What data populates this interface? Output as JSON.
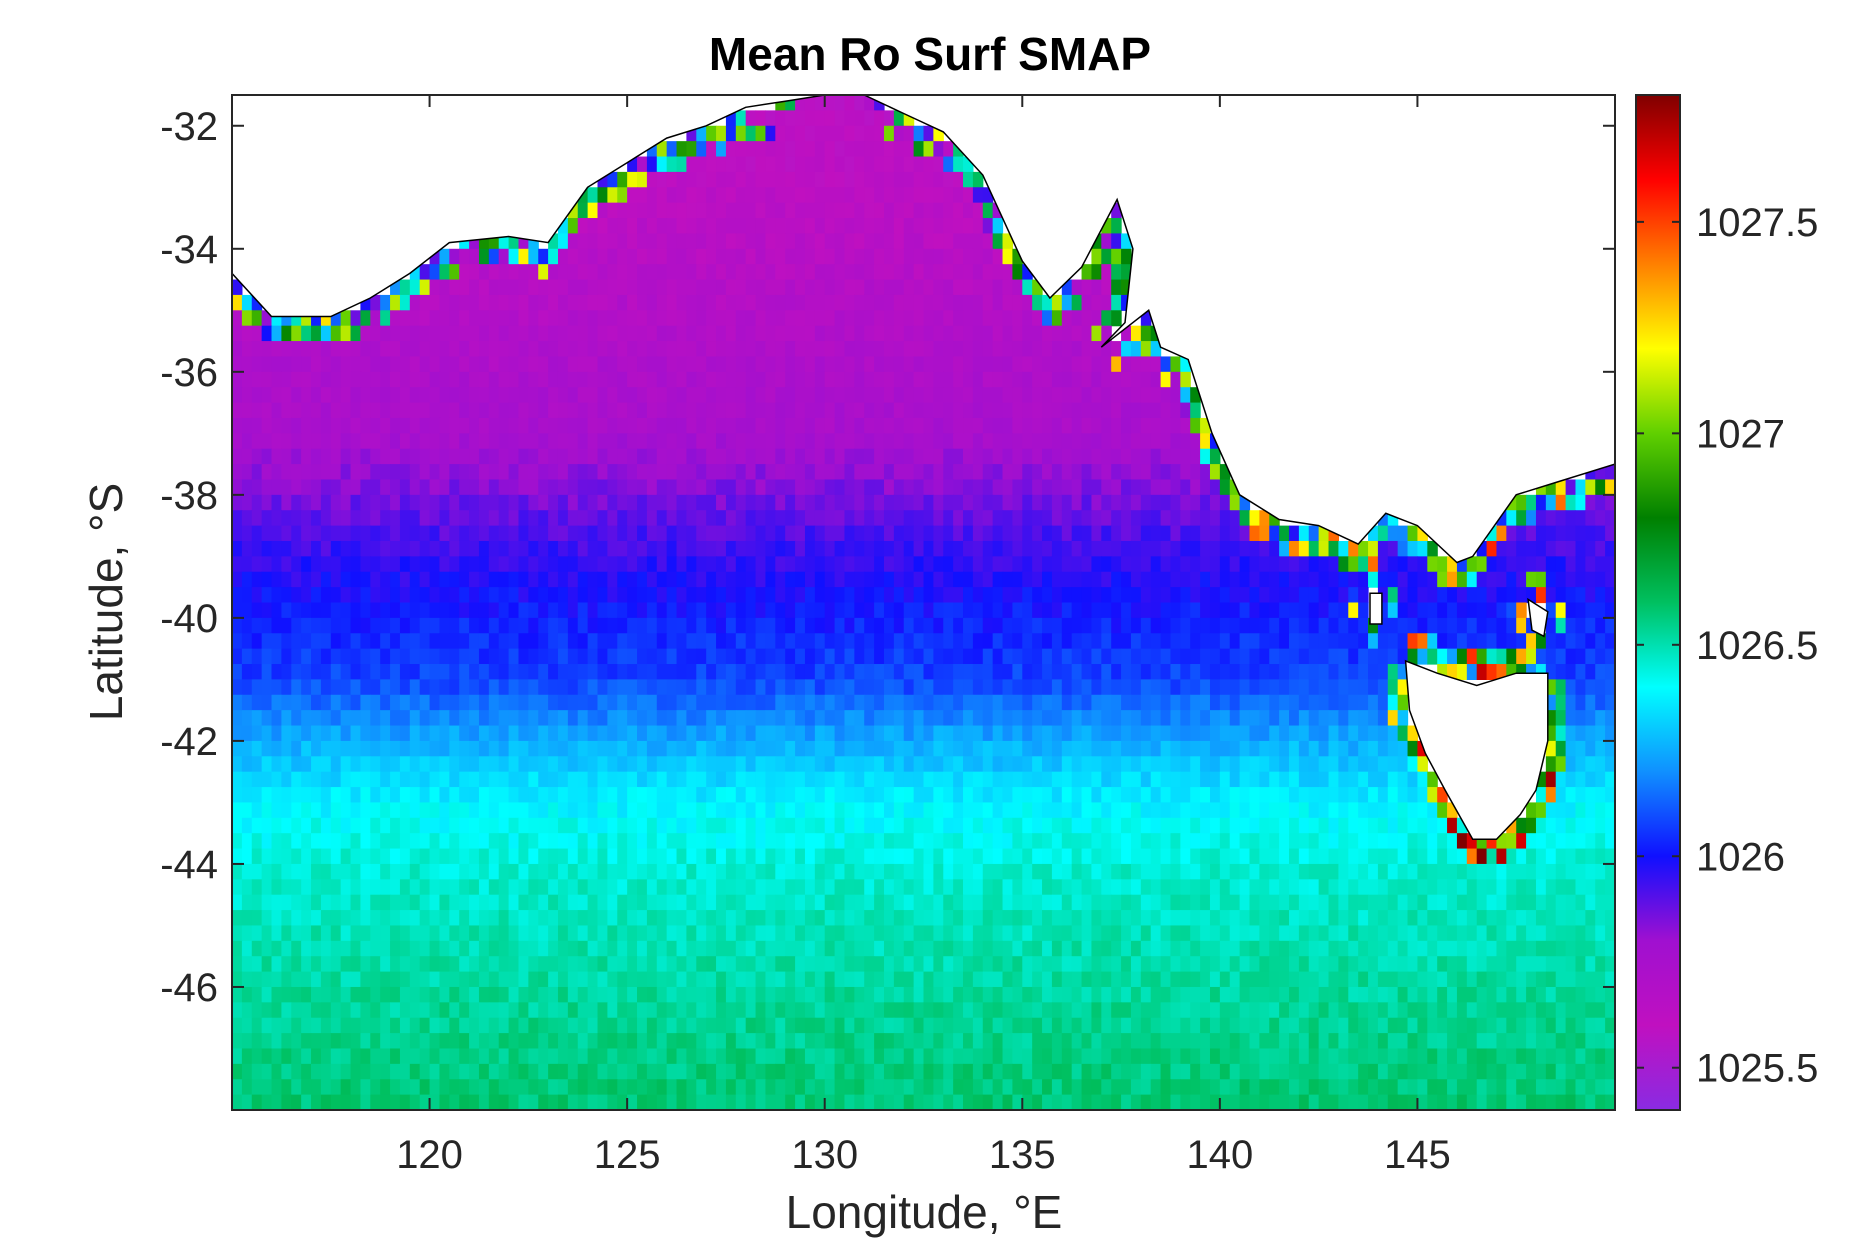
{
  "chart_data": {
    "type": "heatmap",
    "title": "Mean Ro Surf SMAP",
    "xlabel": "Longitude, °E",
    "ylabel": "Latitude, °S",
    "xlim": [
      115,
      150
    ],
    "ylim": [
      -48,
      -31.5
    ],
    "x_ticks": [
      120,
      125,
      130,
      135,
      140,
      145
    ],
    "y_ticks": [
      -32,
      -34,
      -36,
      -38,
      -40,
      -42,
      -44,
      -46
    ],
    "x_tick_labels": [
      "120",
      "125",
      "130",
      "135",
      "140",
      "145"
    ],
    "y_tick_labels": [
      "-32",
      "-34",
      "-36",
      "-38",
      "-40",
      "-42",
      "-44",
      "-46"
    ],
    "colorbar": {
      "range": [
        1025.4,
        1027.8
      ],
      "ticks": [
        1025.5,
        1026,
        1026.5,
        1027,
        1027.5
      ],
      "tick_labels": [
        "1025.5",
        "1026",
        "1026.5",
        "1027",
        "1027.5"
      ],
      "colormap": [
        "#8a2be2",
        "#c010c0",
        "#a010d0",
        "#1010ff",
        "#1090ff",
        "#00ffff",
        "#00c060",
        "#008000",
        "#60d000",
        "#ffff00",
        "#ff8000",
        "#ff0000",
        "#800000"
      ]
    },
    "grid_resolution_deg": 0.25,
    "latitude_profile": [
      {
        "lat": -32,
        "value": 1025.6
      },
      {
        "lat": -34,
        "value": 1025.65
      },
      {
        "lat": -36,
        "value": 1025.72
      },
      {
        "lat": -37,
        "value": 1025.75
      },
      {
        "lat": -38,
        "value": 1025.85
      },
      {
        "lat": -39,
        "value": 1025.95
      },
      {
        "lat": -40,
        "value": 1026.02
      },
      {
        "lat": -41,
        "value": 1026.08
      },
      {
        "lat": -42,
        "value": 1026.25
      },
      {
        "lat": -43,
        "value": 1026.38
      },
      {
        "lat": -44,
        "value": 1026.45
      },
      {
        "lat": -46,
        "value": 1026.52
      },
      {
        "lat": -48,
        "value": 1026.58
      }
    ]
  }
}
